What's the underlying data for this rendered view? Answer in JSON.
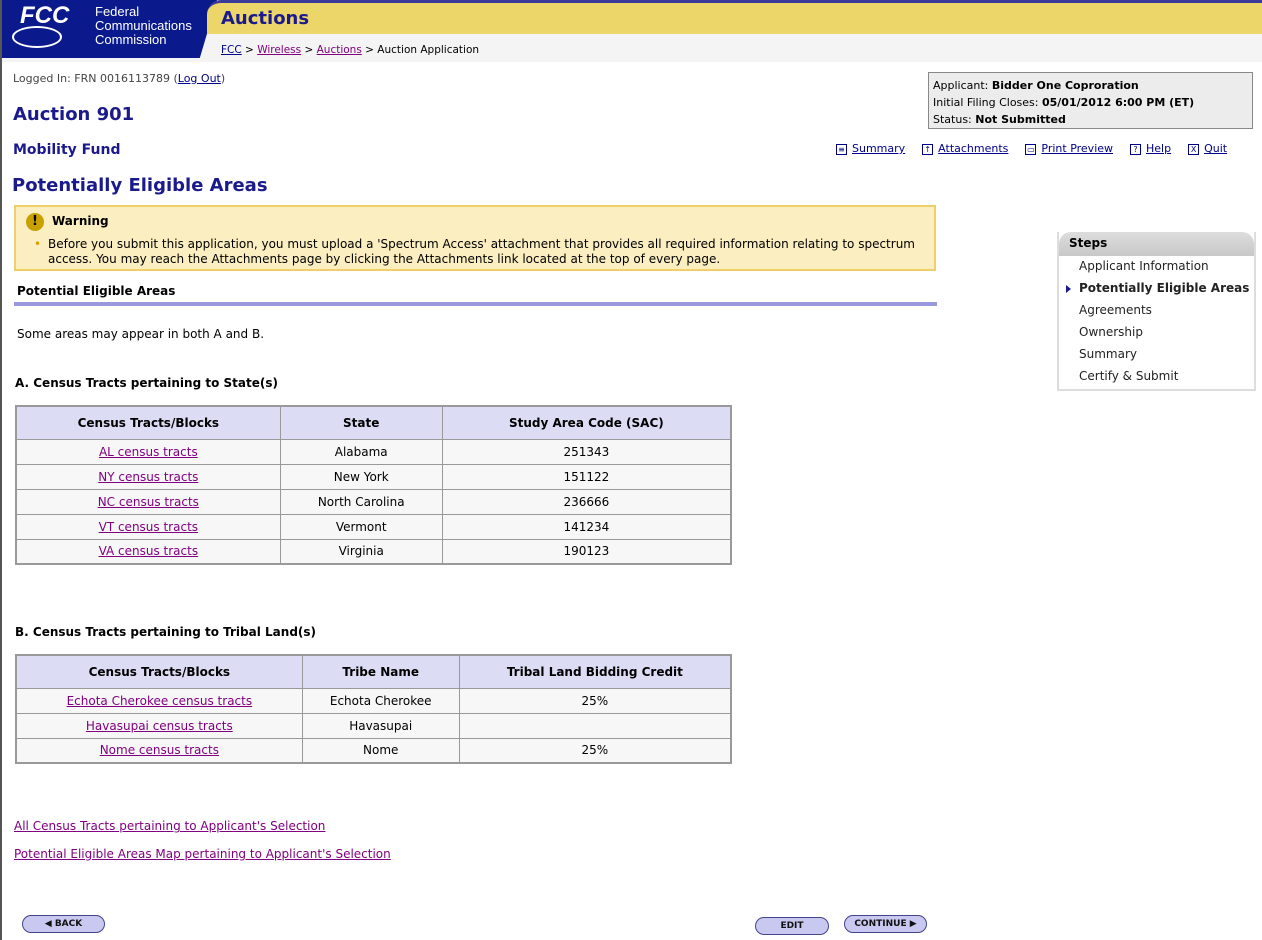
{
  "header": {
    "logo": "FCC",
    "agency": [
      "Federal",
      "Communications",
      "Commission"
    ],
    "section": "Auctions"
  },
  "breadcrumb": [
    {
      "label": "FCC"
    },
    {
      "label": "Wireless"
    },
    {
      "label": "Auctions"
    },
    {
      "label": "Auction Application"
    }
  ],
  "login": {
    "prefix": "Logged In: FRN 0016113789 (",
    "logout": "Log Out",
    "suffix": ")"
  },
  "auction_title": "Auction 901",
  "subtitle": "Mobility Fund",
  "page_title": "Potentially Eligible Areas",
  "applicant": {
    "applicant_label": "Applicant:",
    "applicant": "Bidder One Coproration",
    "closes_label": "Initial Filing Closes:",
    "closes": "05/01/2012 6:00 PM (ET)",
    "status_label": "Status:",
    "status": "Not Submitted"
  },
  "toolbar": [
    {
      "label": "Summary",
      "icon": "list-icon"
    },
    {
      "label": "Attachments",
      "icon": "upload-icon"
    },
    {
      "label": "Print Preview",
      "icon": "printer-icon"
    },
    {
      "label": "Help",
      "icon": "help-icon"
    },
    {
      "label": "Quit",
      "icon": "close-icon"
    }
  ],
  "warning": {
    "title": "Warning",
    "text": "Before you submit this application, you must upload a 'Spectrum Access' attachment that provides all required information relating to spectrum access. You may reach the Attachments page by clicking the Attachments link located at the top of every page."
  },
  "section_header": "Potential Eligible Areas",
  "note": "Some areas may appear in both A and B.",
  "table_a": {
    "title": "A. Census Tracts pertaining to State(s)",
    "headers": [
      "Census Tracts/Blocks",
      "State",
      "Study Area Code (SAC)"
    ],
    "rows": [
      [
        "AL census tracts",
        "Alabama",
        "251343"
      ],
      [
        "NY census tracts",
        "New York",
        "151122"
      ],
      [
        "NC census tracts",
        "North Carolina",
        "236666"
      ],
      [
        "VT census tracts",
        "Vermont",
        "141234"
      ],
      [
        "VA census tracts",
        "Virginia",
        "190123"
      ]
    ]
  },
  "table_b": {
    "title": "B. Census Tracts pertaining to Tribal Land(s)",
    "headers": [
      "Census Tracts/Blocks",
      "Tribe Name",
      "Tribal Land Bidding Credit"
    ],
    "rows": [
      [
        "Echota Cherokee census tracts",
        "Echota Cherokee",
        "25%"
      ],
      [
        "Havasupai census tracts",
        "Havasupai",
        ""
      ],
      [
        "Nome census tracts",
        "Nome",
        "25%"
      ]
    ]
  },
  "links": [
    "All Census Tracts pertaining to Applicant's Selection",
    "Potential Eligible Areas Map pertaining to Applicant's Selection"
  ],
  "steps": {
    "title": "Steps",
    "items": [
      "Applicant Information",
      "Potentially Eligible Areas",
      "Agreements",
      "Ownership",
      "Summary",
      "Certify & Submit"
    ],
    "current": 1
  },
  "buttons": {
    "back": "◀ BACK",
    "edit": "EDIT",
    "continue": "CONTINUE ▶"
  }
}
